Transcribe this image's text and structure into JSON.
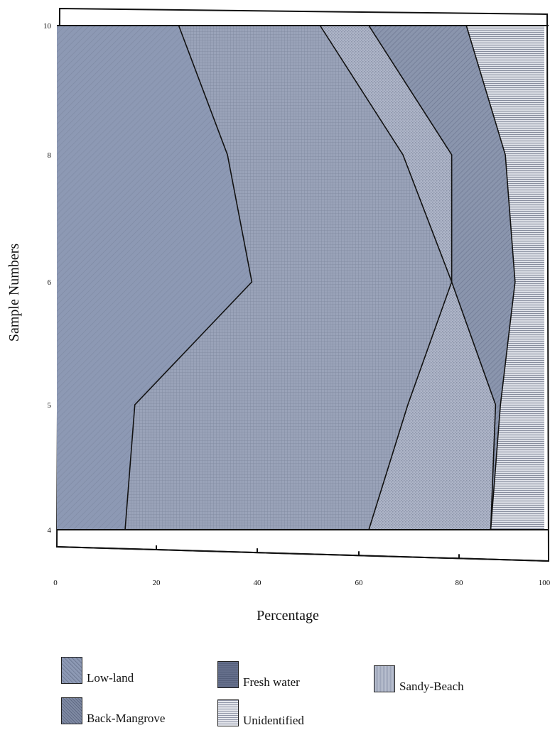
{
  "chart_data": {
    "type": "area",
    "orientation": "horizontal-stacked",
    "xlabel": "Percentage",
    "ylabel": "Sample Numbers",
    "xlim": [
      0,
      100
    ],
    "x_ticks": [
      "0",
      "20",
      "40",
      "60",
      "80",
      "100"
    ],
    "y_ticks": [
      "4",
      "5",
      "6",
      "8",
      "10"
    ],
    "y_categories": [
      4,
      5,
      6,
      8,
      10
    ],
    "legend_placement": "bottom",
    "series": [
      {
        "name": "Low-land",
        "values": [
          14,
          16,
          40,
          35,
          25
        ]
      },
      {
        "name": "Fresh water",
        "values": [
          50,
          56,
          41,
          36,
          29
        ]
      },
      {
        "name": "Sandy-Beach",
        "values": [
          25,
          18,
          0,
          10,
          10
        ]
      },
      {
        "name": "Back-Mangrove",
        "values": [
          0,
          1,
          13,
          11,
          20
        ]
      },
      {
        "name": "Unidentified",
        "values": [
          11,
          9,
          6,
          8,
          16
        ]
      }
    ]
  },
  "colors": {
    "Low-land": "#8d99b4",
    "Fresh water": "#9aa3b9",
    "Sandy-Beach": "#adb4c7",
    "Back-Mangrove": "#8a95ad",
    "Unidentified": "#c9ced9"
  }
}
